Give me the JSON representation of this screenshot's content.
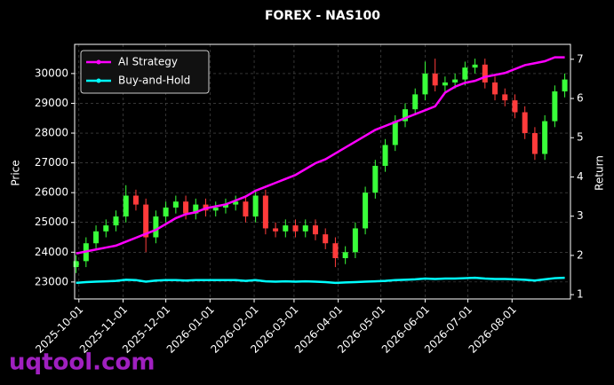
{
  "chart_data": {
    "type": "candlestick",
    "title": "FOREX - NAS100",
    "x": [
      "2025-09-29",
      "2025-10-06",
      "2025-10-13",
      "2025-10-20",
      "2025-10-27",
      "2025-11-03",
      "2025-11-10",
      "2025-11-17",
      "2025-11-24",
      "2025-12-01",
      "2025-12-08",
      "2025-12-15",
      "2025-12-22",
      "2025-12-29",
      "2026-01-05",
      "2026-01-12",
      "2026-01-19",
      "2026-01-26",
      "2026-02-02",
      "2026-02-09",
      "2026-02-16",
      "2026-02-23",
      "2026-03-02",
      "2026-03-09",
      "2026-03-16",
      "2026-03-23",
      "2026-03-30",
      "2026-04-06",
      "2026-04-13",
      "2026-04-20",
      "2026-04-27",
      "2026-05-04",
      "2026-05-11",
      "2026-05-18",
      "2026-05-25",
      "2026-06-01",
      "2026-06-08",
      "2026-06-15",
      "2026-06-22",
      "2026-06-29",
      "2026-07-06",
      "2026-07-13",
      "2026-07-20",
      "2026-07-27",
      "2026-08-03",
      "2026-08-10",
      "2026-08-17",
      "2026-08-24",
      "2026-08-31",
      "2026-09-07"
    ],
    "open": [
      23500,
      23700,
      24300,
      24700,
      24900,
      25200,
      25900,
      25600,
      24500,
      25200,
      25500,
      25700,
      25300,
      25600,
      25400,
      25500,
      25600,
      25700,
      25200,
      25900,
      24800,
      24700,
      24900,
      24700,
      24900,
      24600,
      24300,
      23800,
      24000,
      24800,
      26000,
      26900,
      27600,
      28400,
      28800,
      29300,
      30000,
      29600,
      29700,
      29800,
      30200,
      30300,
      29700,
      29300,
      29100,
      28700,
      28000,
      27300,
      28400,
      29400
    ],
    "high": [
      23900,
      24500,
      24900,
      25100,
      25400,
      26250,
      26100,
      25800,
      25400,
      25700,
      25900,
      25900,
      25800,
      25800,
      25700,
      25800,
      25900,
      25900,
      26100,
      26100,
      25000,
      25100,
      25100,
      25100,
      25100,
      24800,
      24500,
      24200,
      25000,
      26200,
      27100,
      27800,
      28600,
      29000,
      29500,
      30400,
      30500,
      29900,
      30000,
      30400,
      30500,
      30500,
      29900,
      29500,
      29300,
      28900,
      28200,
      28600,
      29600,
      30000
    ],
    "low": [
      23300,
      23500,
      24100,
      24500,
      24700,
      25000,
      25400,
      24000,
      24300,
      25000,
      25300,
      25100,
      25100,
      25200,
      25200,
      25300,
      25400,
      25000,
      25000,
      24600,
      24500,
      24500,
      24500,
      24500,
      24400,
      24100,
      23500,
      23600,
      23800,
      24600,
      25800,
      26700,
      27400,
      28200,
      28600,
      29100,
      29400,
      29400,
      29500,
      29600,
      30000,
      29500,
      29100,
      28900,
      28500,
      27800,
      27100,
      27100,
      28200,
      29200
    ],
    "close": [
      23700,
      24300,
      24700,
      24900,
      25200,
      25900,
      25600,
      24500,
      25200,
      25500,
      25700,
      25300,
      25600,
      25400,
      25500,
      25600,
      25700,
      25200,
      25900,
      24800,
      24700,
      24900,
      24700,
      24900,
      24600,
      24300,
      23800,
      24000,
      24800,
      26000,
      26900,
      27600,
      28400,
      28800,
      29300,
      30000,
      29600,
      29700,
      29800,
      30200,
      30300,
      29700,
      29300,
      29100,
      28700,
      28000,
      27300,
      28400,
      29400,
      29800
    ],
    "up_color": "#39ff3a",
    "down_color": "#ff3b3b",
    "series": [
      {
        "name": "AI Strategy",
        "color": "#ff00ff",
        "axis": "y2",
        "values": [
          2.05,
          2.1,
          2.15,
          2.2,
          2.25,
          2.35,
          2.45,
          2.55,
          2.65,
          2.8,
          2.95,
          3.05,
          3.1,
          3.2,
          3.25,
          3.3,
          3.4,
          3.5,
          3.65,
          3.75,
          3.85,
          3.95,
          4.05,
          4.2,
          4.35,
          4.45,
          4.6,
          4.75,
          4.9,
          5.05,
          5.2,
          5.3,
          5.4,
          5.5,
          5.6,
          5.7,
          5.8,
          6.15,
          6.3,
          6.4,
          6.45,
          6.55,
          6.6,
          6.65,
          6.75,
          6.85,
          6.9,
          6.95,
          7.05,
          7.05
        ]
      },
      {
        "name": "Buy-and-Hold",
        "color": "#00ffff",
        "axis": "y2",
        "values": [
          1.3,
          1.32,
          1.33,
          1.34,
          1.35,
          1.38,
          1.37,
          1.33,
          1.36,
          1.37,
          1.37,
          1.36,
          1.37,
          1.37,
          1.37,
          1.37,
          1.37,
          1.35,
          1.37,
          1.34,
          1.33,
          1.34,
          1.33,
          1.34,
          1.33,
          1.32,
          1.3,
          1.31,
          1.32,
          1.33,
          1.34,
          1.35,
          1.37,
          1.38,
          1.39,
          1.41,
          1.4,
          1.41,
          1.41,
          1.42,
          1.43,
          1.41,
          1.4,
          1.4,
          1.39,
          1.38,
          1.36,
          1.39,
          1.42,
          1.43
        ]
      }
    ],
    "xlim": [
      "2025-09-28",
      "2026-09-11"
    ],
    "xticks": [
      "2025-10-01",
      "2025-11-01",
      "2025-12-01",
      "2026-01-01",
      "2026-02-01",
      "2026-03-01",
      "2026-04-01",
      "2026-05-01",
      "2026-06-01",
      "2026-07-01",
      "2026-08-01"
    ],
    "ylim": [
      22430,
      30980
    ],
    "yticks": [
      23000,
      24000,
      25000,
      26000,
      27000,
      28000,
      29000,
      30000
    ],
    "y2lim": [
      0.89,
      7.38
    ],
    "y2ticks": [
      1,
      2,
      3,
      4,
      5,
      6,
      7
    ],
    "ylabel": "Price",
    "y2label": "Return",
    "grid": true,
    "legend": "upper left"
  },
  "watermark": "uqtool.com"
}
